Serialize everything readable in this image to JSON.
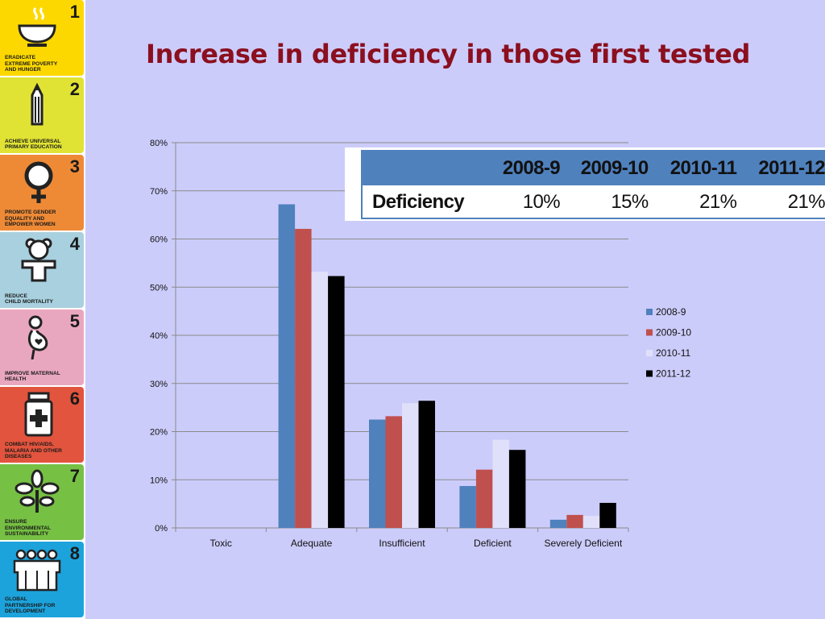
{
  "slide": {
    "title": "Increase in deficiency in those first tested"
  },
  "sidebar": {
    "goals": [
      {
        "number": "1",
        "text": "ERADICATE\nEXTREME POVERTY\nAND HUNGER",
        "color": "#fcd800",
        "icon": "bowl-icon"
      },
      {
        "number": "2",
        "text": "ACHIEVE UNIVERSAL\nPRIMARY EDUCATION",
        "color": "#e0e334",
        "icon": "pencil-icon"
      },
      {
        "number": "3",
        "text": "PROMOTE GENDER\nEQUALITY AND\nEMPOWER WOMEN",
        "color": "#ee8a36",
        "icon": "female-symbol-icon"
      },
      {
        "number": "4",
        "text": "REDUCE\nCHILD MORTALITY",
        "color": "#a8d0de",
        "icon": "teddy-bear-icon"
      },
      {
        "number": "5",
        "text": "IMPROVE MATERNAL\nHEALTH",
        "color": "#e9a7bf",
        "icon": "pregnant-woman-icon"
      },
      {
        "number": "6",
        "text": "COMBAT HIV/AIDS,\nMALARIA AND OTHER\nDISEASES",
        "color": "#e2543d",
        "icon": "medicine-bottle-icon"
      },
      {
        "number": "7",
        "text": "ENSURE\nENVIRONMENTAL\nSUSTAINABILITY",
        "color": "#76c043",
        "icon": "plant-icon"
      },
      {
        "number": "8",
        "text": "GLOBAL\nPARTNERSHIP FOR\nDEVELOPMENT",
        "color": "#1ca3dc",
        "icon": "people-group-icon"
      }
    ]
  },
  "table": {
    "header": [
      "",
      "2008-9",
      "2009-10",
      "2010-11",
      "2011-12"
    ],
    "rows": [
      [
        "Deficiency",
        "10%",
        "15%",
        "21%",
        "21%"
      ]
    ]
  },
  "chart_data": {
    "type": "bar",
    "categories": [
      "Toxic",
      "Adequate",
      "Insufficient",
      "Deficient",
      "Severely Deficient"
    ],
    "series": [
      {
        "name": "2008-9",
        "color": "#4f81bd",
        "values": [
          0,
          67.2,
          22.5,
          8.7,
          1.7
        ]
      },
      {
        "name": "2009-10",
        "color": "#c0504d",
        "values": [
          0,
          62.1,
          23.2,
          12.1,
          2.7
        ]
      },
      {
        "name": "2010-11",
        "color": "#e0e0fa",
        "values": [
          0,
          53.2,
          25.9,
          18.3,
          2.5
        ]
      },
      {
        "name": "2011-12",
        "color": "#000000",
        "values": [
          0,
          52.3,
          26.4,
          16.2,
          5.2
        ]
      }
    ],
    "ylim": [
      0,
      80
    ],
    "yticks": [
      "0%",
      "10%",
      "20%",
      "30%",
      "40%",
      "50%",
      "60%",
      "70%",
      "80%"
    ],
    "grid": true,
    "legend_position": "right",
    "title": "",
    "xlabel": "",
    "ylabel": ""
  }
}
